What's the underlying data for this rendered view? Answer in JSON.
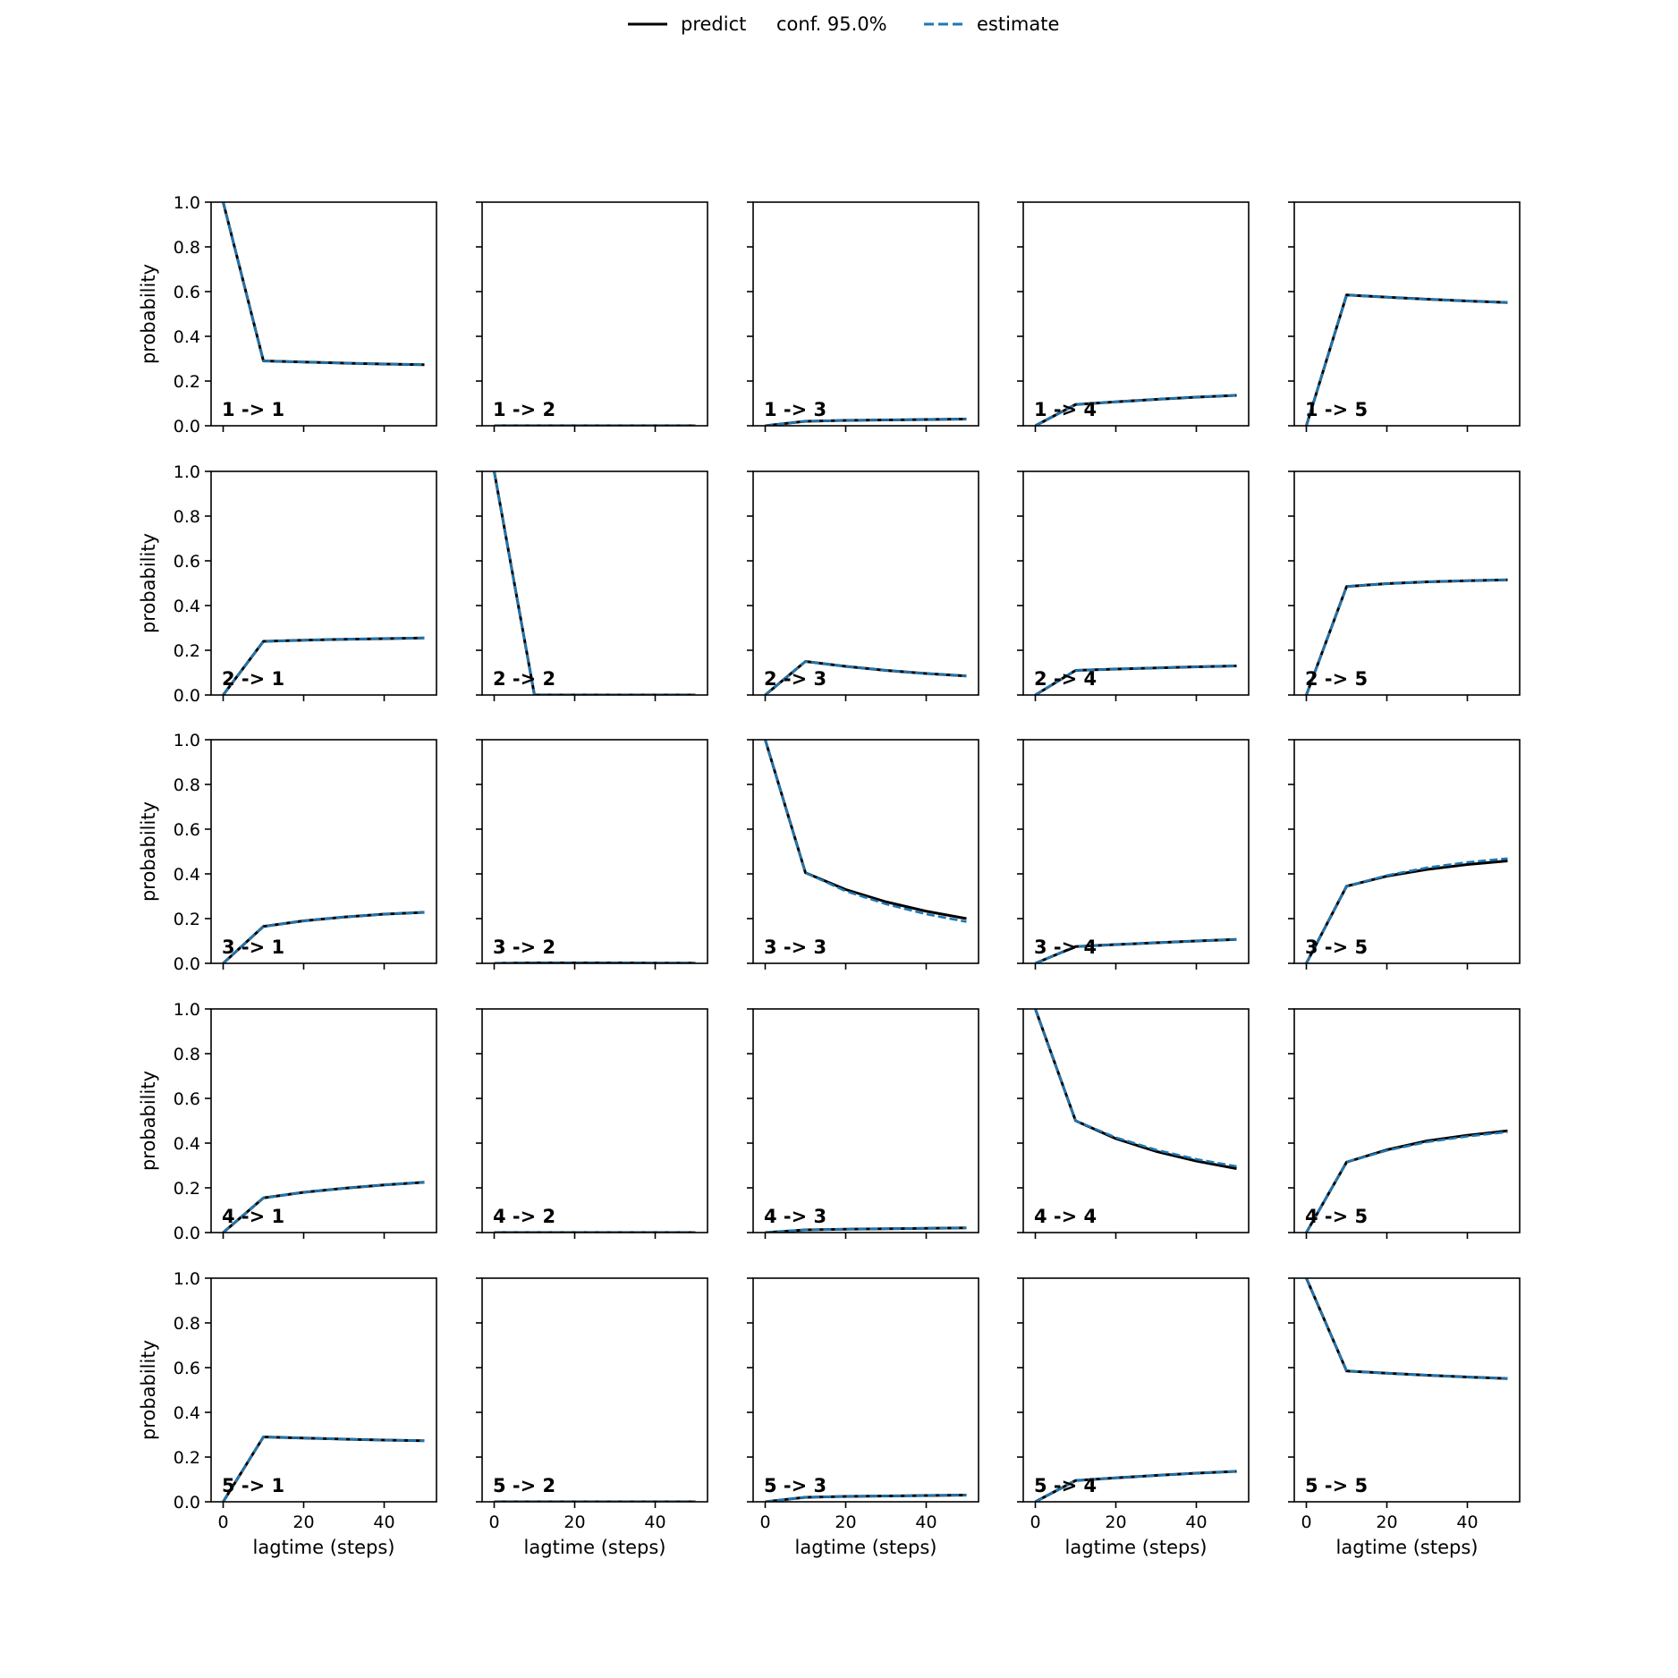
{
  "chart_data": {
    "type": "line",
    "legend": {
      "position": "top-center",
      "entries": [
        {
          "key": "predict",
          "label": "predict",
          "style": "solid",
          "color": "#000000"
        },
        {
          "key": "conf",
          "label": "conf. 95.0%",
          "style": "none",
          "color": "#1f77b4"
        },
        {
          "key": "estimate",
          "label": "estimate",
          "style": "dashed",
          "color": "#1f77b4"
        }
      ]
    },
    "x_axis": {
      "label": "lagtime (steps)",
      "range": [
        -3,
        53
      ],
      "ticks": [
        0,
        20,
        40
      ]
    },
    "y_axis": {
      "label": "probability",
      "range": [
        0,
        1
      ],
      "ticks": [
        0.0,
        0.2,
        0.4,
        0.6,
        0.8,
        1.0
      ]
    },
    "grid": false,
    "x": [
      0,
      10,
      20,
      30,
      40,
      50
    ],
    "panels": [
      [
        {
          "label": "1 -> 1",
          "predict": [
            1.0,
            0.29,
            0.285,
            0.28,
            0.276,
            0.273
          ],
          "estimate": [
            1.0,
            0.29,
            0.285,
            0.28,
            0.276,
            0.273
          ]
        },
        {
          "label": "1 -> 2",
          "predict": [
            0.0,
            0.0,
            0.0,
            0.0,
            0.0,
            0.0
          ],
          "estimate": [
            0.0,
            0.0,
            0.0,
            0.0,
            0.0,
            0.0
          ]
        },
        {
          "label": "1 -> 3",
          "predict": [
            0.0,
            0.02,
            0.024,
            0.026,
            0.028,
            0.03
          ],
          "estimate": [
            0.0,
            0.02,
            0.024,
            0.026,
            0.028,
            0.03
          ]
        },
        {
          "label": "1 -> 4",
          "predict": [
            0.0,
            0.095,
            0.107,
            0.118,
            0.128,
            0.136
          ],
          "estimate": [
            0.0,
            0.095,
            0.107,
            0.118,
            0.128,
            0.136
          ]
        },
        {
          "label": "1 -> 5",
          "predict": [
            0.0,
            0.585,
            0.575,
            0.566,
            0.558,
            0.551
          ],
          "estimate": [
            0.0,
            0.585,
            0.575,
            0.566,
            0.558,
            0.551
          ]
        }
      ],
      [
        {
          "label": "2 -> 1",
          "predict": [
            0.0,
            0.24,
            0.245,
            0.249,
            0.252,
            0.255
          ],
          "estimate": [
            0.0,
            0.24,
            0.245,
            0.249,
            0.252,
            0.255
          ]
        },
        {
          "label": "2 -> 2",
          "predict": [
            1.0,
            0.0,
            0.0,
            0.0,
            0.0,
            0.0
          ],
          "estimate": [
            1.0,
            0.0,
            0.0,
            0.0,
            0.0,
            0.0
          ]
        },
        {
          "label": "2 -> 3",
          "predict": [
            0.0,
            0.15,
            0.128,
            0.11,
            0.096,
            0.085
          ],
          "estimate": [
            0.0,
            0.15,
            0.128,
            0.11,
            0.096,
            0.085
          ]
        },
        {
          "label": "2 -> 4",
          "predict": [
            0.0,
            0.11,
            0.116,
            0.121,
            0.126,
            0.13
          ],
          "estimate": [
            0.0,
            0.11,
            0.116,
            0.121,
            0.126,
            0.13
          ]
        },
        {
          "label": "2 -> 5",
          "predict": [
            0.0,
            0.485,
            0.498,
            0.506,
            0.511,
            0.515
          ],
          "estimate": [
            0.0,
            0.485,
            0.498,
            0.506,
            0.511,
            0.515
          ]
        }
      ],
      [
        {
          "label": "3 -> 1",
          "predict": [
            0.0,
            0.165,
            0.19,
            0.207,
            0.22,
            0.228
          ],
          "estimate": [
            0.0,
            0.165,
            0.19,
            0.207,
            0.22,
            0.228
          ]
        },
        {
          "label": "3 -> 2",
          "predict": [
            0.0,
            0.002,
            0.002,
            0.002,
            0.001,
            0.001
          ],
          "estimate": [
            0.0,
            0.002,
            0.002,
            0.002,
            0.001,
            0.001
          ]
        },
        {
          "label": "3 -> 3",
          "predict": [
            1.0,
            0.405,
            0.33,
            0.275,
            0.233,
            0.2
          ],
          "estimate": [
            1.0,
            0.405,
            0.323,
            0.265,
            0.22,
            0.186
          ]
        },
        {
          "label": "3 -> 4",
          "predict": [
            0.0,
            0.075,
            0.084,
            0.092,
            0.1,
            0.107
          ],
          "estimate": [
            0.0,
            0.075,
            0.084,
            0.092,
            0.1,
            0.107
          ]
        },
        {
          "label": "3 -> 5",
          "predict": [
            0.0,
            0.345,
            0.39,
            0.42,
            0.442,
            0.458
          ],
          "estimate": [
            0.0,
            0.345,
            0.393,
            0.428,
            0.452,
            0.469
          ]
        }
      ],
      [
        {
          "label": "4 -> 1",
          "predict": [
            0.0,
            0.155,
            0.18,
            0.198,
            0.213,
            0.225
          ],
          "estimate": [
            0.0,
            0.155,
            0.18,
            0.198,
            0.213,
            0.225
          ]
        },
        {
          "label": "4 -> 2",
          "predict": [
            0.0,
            0.0,
            0.0,
            0.0,
            0.0,
            0.0
          ],
          "estimate": [
            0.0,
            0.0,
            0.0,
            0.0,
            0.0,
            0.0
          ]
        },
        {
          "label": "4 -> 3",
          "predict": [
            0.0,
            0.012,
            0.015,
            0.017,
            0.019,
            0.021
          ],
          "estimate": [
            0.0,
            0.012,
            0.015,
            0.017,
            0.019,
            0.021
          ]
        },
        {
          "label": "4 -> 4",
          "predict": [
            1.0,
            0.5,
            0.42,
            0.363,
            0.32,
            0.286
          ],
          "estimate": [
            1.0,
            0.5,
            0.425,
            0.37,
            0.328,
            0.296
          ]
        },
        {
          "label": "4 -> 5",
          "predict": [
            0.0,
            0.315,
            0.37,
            0.41,
            0.435,
            0.455
          ],
          "estimate": [
            0.0,
            0.315,
            0.367,
            0.405,
            0.43,
            0.45
          ]
        }
      ],
      [
        {
          "label": "5 -> 1",
          "predict": [
            0.0,
            0.29,
            0.285,
            0.28,
            0.276,
            0.273
          ],
          "estimate": [
            0.0,
            0.29,
            0.285,
            0.28,
            0.276,
            0.273
          ]
        },
        {
          "label": "5 -> 2",
          "predict": [
            0.0,
            0.0,
            0.0,
            0.0,
            0.0,
            0.0
          ],
          "estimate": [
            0.0,
            0.0,
            0.0,
            0.0,
            0.0,
            0.0
          ]
        },
        {
          "label": "5 -> 3",
          "predict": [
            0.0,
            0.02,
            0.024,
            0.026,
            0.028,
            0.03
          ],
          "estimate": [
            0.0,
            0.02,
            0.024,
            0.026,
            0.028,
            0.03
          ]
        },
        {
          "label": "5 -> 4",
          "predict": [
            0.0,
            0.095,
            0.107,
            0.118,
            0.128,
            0.136
          ],
          "estimate": [
            0.0,
            0.095,
            0.107,
            0.118,
            0.128,
            0.136
          ]
        },
        {
          "label": "5 -> 5",
          "predict": [
            1.0,
            0.585,
            0.575,
            0.566,
            0.558,
            0.551
          ],
          "estimate": [
            1.0,
            0.585,
            0.575,
            0.566,
            0.558,
            0.551
          ]
        }
      ]
    ]
  }
}
